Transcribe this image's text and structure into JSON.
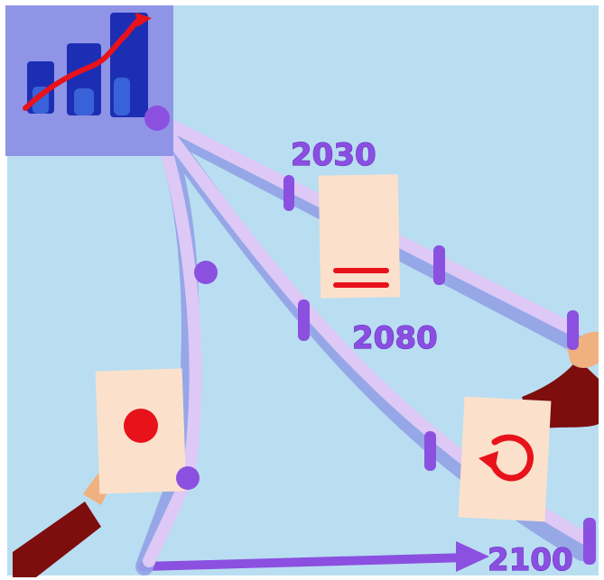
{
  "diagram": {
    "labels": {
      "year_2030": "2030",
      "year_2080": "2080",
      "year_2100": "2100"
    },
    "colors": {
      "background": "#b9def1",
      "path": "#ddc8f6",
      "path_shadow": "#93a2e6",
      "marker": "#8b50e0",
      "paper": "#fbe1cc",
      "red": "#e8121b",
      "chart_bg": "#8f94e6",
      "bar": "#1c2fb4",
      "arm": "#7e0d0d",
      "hand": "#efb180"
    },
    "icons": [
      "bar-chart-icon",
      "equals-sign-icon",
      "red-dot-icon",
      "circular-arrow-icon"
    ]
  }
}
